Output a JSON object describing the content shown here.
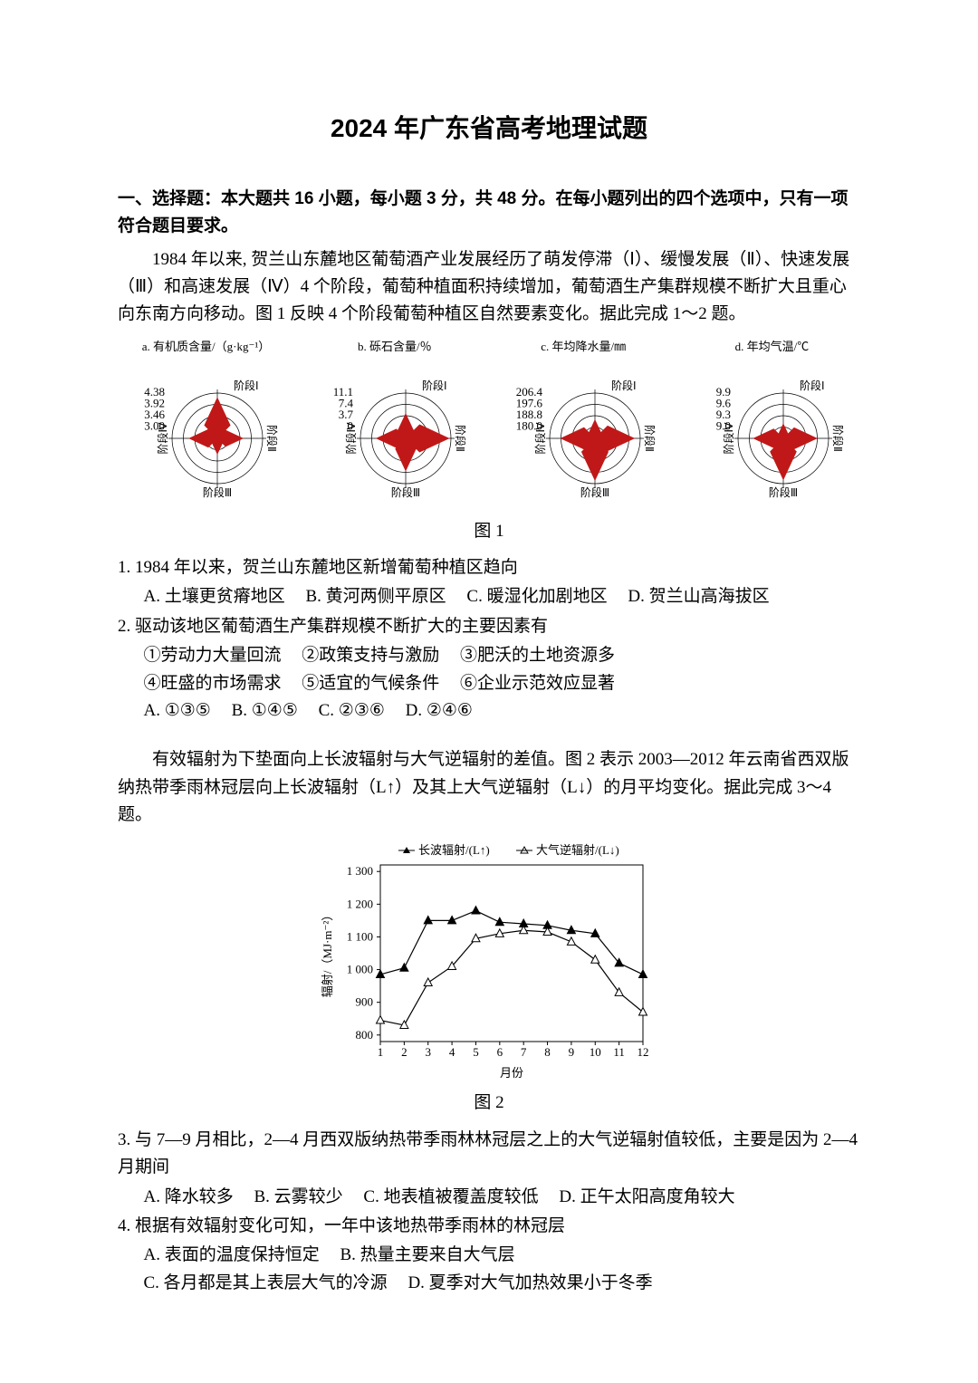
{
  "title": "2024 年广东省高考地理试题",
  "section1_head": "一、选择题：本大题共 16 小题，每小题 3 分，共 48 分。在每小题列出的四个选项中，只有一项符合题目要求。",
  "passage1": "1984 年以来, 贺兰山东麓地区葡萄酒产业发展经历了萌发停滞（Ⅰ）、缓慢发展（Ⅱ）、快速发展（Ⅲ）和高速发展（Ⅳ）4 个阶段，葡萄种植面积持续增加，葡萄酒生产集群规模不断扩大且重心向东南方向移动。图 1 反映 4 个阶段葡萄种植区自然要素变化。据此完成 1～2 题。",
  "fig1": {
    "caption": "图 1",
    "charts": [
      {
        "title": "a. 有机质含量/（g·kg⁻¹）",
        "stages": [
          "阶段Ⅰ",
          "阶段Ⅱ",
          "阶段Ⅲ",
          "阶段Ⅳ"
        ],
        "ticks": [
          "4.38",
          "3.92",
          "3.46",
          "3.00"
        ],
        "maxVal": 4.38,
        "minVal": 3.0,
        "values": [
          4.2,
          3.6,
          3.2,
          3.7
        ],
        "fill": "#c01818",
        "tickColor": "#000000"
      },
      {
        "title": "b. 砾石含量/％",
        "stages": [
          "阶段Ⅰ",
          "阶段Ⅱ",
          "阶段Ⅲ",
          "阶段Ⅳ"
        ],
        "ticks": [
          "11.1",
          "7.4",
          "3.7",
          "0"
        ],
        "maxVal": 11.1,
        "minVal": 0,
        "values": [
          4.5,
          10.5,
          7.0,
          6.0
        ],
        "fill": "#c01818",
        "tickColor": "#000000"
      },
      {
        "title": "c. 年均降水量/㎜",
        "stages": [
          "阶段Ⅰ",
          "阶段Ⅱ",
          "阶段Ⅲ",
          "阶段Ⅳ"
        ],
        "ticks": [
          "206.4",
          "197.6",
          "188.8",
          "180.0"
        ],
        "maxVal": 206.4,
        "minVal": 180.0,
        "values": [
          186,
          202,
          204,
          198
        ],
        "fill": "#c01818",
        "tickColor": "#000000"
      },
      {
        "title": "d. 年均气温/℃",
        "stages": [
          "阶段Ⅰ",
          "阶段Ⅱ",
          "阶段Ⅲ",
          "阶段Ⅳ"
        ],
        "ticks": [
          "9.9",
          "9.6",
          "9.3",
          "9.0"
        ],
        "maxVal": 9.9,
        "minVal": 9.0,
        "values": [
          9.1,
          9.6,
          9.8,
          9.5
        ],
        "fill": "#c01818",
        "tickColor": "#000000"
      }
    ]
  },
  "q1": {
    "stem": "1. 1984 年以来，贺兰山东麓地区新增葡萄种植区趋向",
    "A": "A. 土壤更贫瘠地区",
    "B": "B. 黄河两侧平原区",
    "C": "C. 暖湿化加剧地区",
    "D": "D. 贺兰山高海拔区"
  },
  "q2": {
    "stem": "2. 驱动该地区葡萄酒生产集群规模不断扩大的主要因素有",
    "i1": "①劳动力大量回流",
    "i2": "②政策支持与激励",
    "i3": "③肥沃的土地资源多",
    "i4": "④旺盛的市场需求",
    "i5": "⑤适宜的气候条件",
    "i6": "⑥企业示范效应显著",
    "A": "A. ①③⑤",
    "B": "B. ①④⑤",
    "C": "C. ②③⑥",
    "D": "D. ②④⑥"
  },
  "passage2": "有效辐射为下垫面向上长波辐射与大气逆辐射的差值。图 2 表示 2003—2012 年云南省西双版纳热带季雨林冠层向上长波辐射（L↑）及其上大气逆辐射（L↓）的月平均变化。据此完成 3～4 题。",
  "fig2": {
    "caption": "图 2",
    "legend1": "长波辐射/(L↑)",
    "legend2": "大气逆辐射/(L↓)",
    "xlabel": "月份",
    "ylabel": "辐射/（MJ·m⁻²）",
    "xticks": [
      "1",
      "2",
      "3",
      "4",
      "5",
      "6",
      "7",
      "8",
      "9",
      "10",
      "11",
      "12"
    ],
    "yticks": [
      "800",
      "900",
      "1 000",
      "1 100",
      "1 200",
      "1 300"
    ],
    "ylim": [
      780,
      1320
    ],
    "series1": {
      "name": "L↑",
      "marker": "triangle-filled",
      "color": "#000000",
      "values": [
        985,
        1005,
        1150,
        1150,
        1180,
        1145,
        1140,
        1135,
        1120,
        1110,
        1020,
        985
      ]
    },
    "series2": {
      "name": "L↓",
      "marker": "triangle-open",
      "color": "#000000",
      "values": [
        845,
        830,
        960,
        1010,
        1095,
        1110,
        1120,
        1115,
        1085,
        1030,
        930,
        870
      ]
    },
    "background": "#ffffff",
    "axisColor": "#000000"
  },
  "q3": {
    "stem": "3. 与 7—9 月相比，2—4 月西双版纳热带季雨林林冠层之上的大气逆辐射值较低，主要是因为 2—4 月期间",
    "A": "A. 降水较多",
    "B": "B. 云雾较少",
    "C": "C. 地表植被覆盖度较低",
    "D": "D. 正午太阳高度角较大"
  },
  "q4": {
    "stem": "4. 根据有效辐射变化可知，一年中该地热带季雨林的林冠层",
    "A": "A. 表面的温度保持恒定",
    "B": "B. 热量主要来自大气层",
    "C": "C. 各月都是其上表层大气的冷源",
    "D": "D. 夏季对大气加热效果小于冬季"
  }
}
